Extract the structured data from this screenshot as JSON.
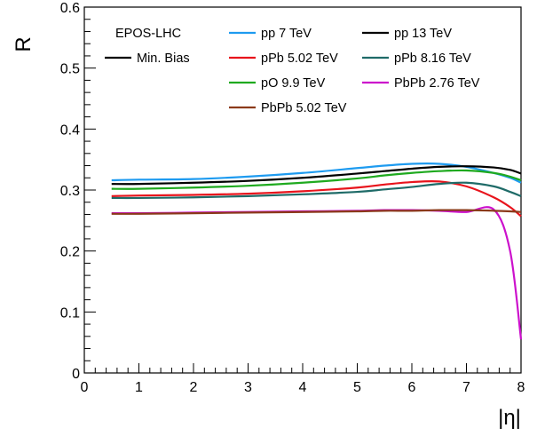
{
  "chart_data": {
    "type": "line",
    "title": "",
    "xlabel": "|η|",
    "ylabel": "R",
    "xlim": [
      0,
      8
    ],
    "ylim": [
      0,
      0.6
    ],
    "xticks": [
      "0",
      "1",
      "2",
      "3",
      "4",
      "5",
      "6",
      "7",
      "8"
    ],
    "yticks": [
      "0",
      "0.1",
      "0.2",
      "0.3",
      "0.4",
      "0.5",
      "0.6"
    ],
    "grid": false,
    "legend_header": "EPOS-LHC",
    "legend_placement": "top",
    "x": [
      0.5,
      1,
      2,
      3,
      4,
      5,
      5.5,
      6,
      6.5,
      7,
      7.5,
      7.8,
      8
    ],
    "series": [
      {
        "name": "Min. Bias",
        "color": "#000000",
        "style": "solid",
        "values": [
          0.305,
          0.305,
          0.305,
          0.305,
          0.305,
          0.305,
          0.305,
          0.305,
          0.305,
          0.305,
          0.305,
          0.305,
          0.305
        ]
      },
      {
        "name": "pp 7 TeV",
        "color": "#1e9bf0",
        "style": "solid",
        "values": [
          0.316,
          0.317,
          0.318,
          0.322,
          0.328,
          0.336,
          0.34,
          0.343,
          0.343,
          0.338,
          0.328,
          0.32,
          0.312
        ]
      },
      {
        "name": "pp 13 TeV",
        "color": "#000000",
        "style": "solid",
        "values": [
          0.31,
          0.31,
          0.312,
          0.315,
          0.32,
          0.327,
          0.331,
          0.335,
          0.338,
          0.339,
          0.337,
          0.333,
          0.327
        ]
      },
      {
        "name": "pPb 5.02 TeV",
        "color": "#e8141c",
        "style": "solid",
        "values": [
          0.29,
          0.291,
          0.292,
          0.294,
          0.298,
          0.304,
          0.309,
          0.313,
          0.314,
          0.306,
          0.288,
          0.272,
          0.257
        ]
      },
      {
        "name": "pPb 8.16 TeV",
        "color": "#1f6b68",
        "style": "solid",
        "values": [
          0.287,
          0.287,
          0.288,
          0.29,
          0.293,
          0.297,
          0.301,
          0.305,
          0.31,
          0.312,
          0.306,
          0.297,
          0.29
        ]
      },
      {
        "name": "pO 9.9 TeV",
        "color": "#1faa1f",
        "style": "solid",
        "values": [
          0.302,
          0.302,
          0.304,
          0.307,
          0.312,
          0.319,
          0.324,
          0.328,
          0.331,
          0.332,
          0.328,
          0.322,
          0.316
        ]
      },
      {
        "name": "PbPb 2.76 TeV",
        "color": "#cc11cc",
        "style": "solid",
        "values": [
          0.262,
          0.262,
          0.263,
          0.264,
          0.265,
          0.266,
          0.267,
          0.267,
          0.266,
          0.264,
          0.268,
          0.2,
          0.055
        ]
      },
      {
        "name": "PbPb 5.02 TeV",
        "color": "#8b3a1a",
        "style": "solid",
        "values": [
          0.261,
          0.261,
          0.262,
          0.263,
          0.264,
          0.265,
          0.266,
          0.266,
          0.267,
          0.267,
          0.266,
          0.265,
          0.264
        ]
      }
    ]
  }
}
